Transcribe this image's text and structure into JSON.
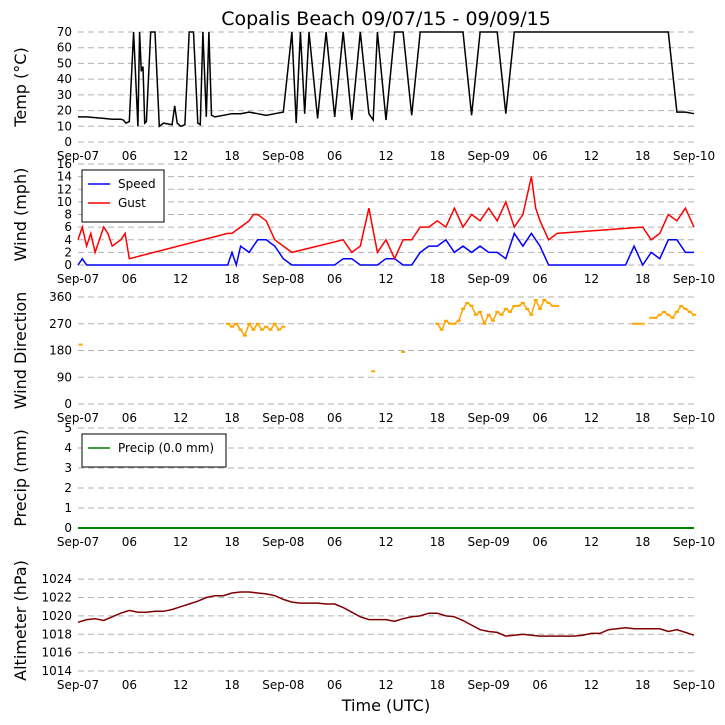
{
  "title": "Copalis Beach 09/07/15 - 09/09/15",
  "xlabel": "Time (UTC)",
  "x_ticks": [
    "Sep-07",
    "06",
    "12",
    "18",
    "Sep-08",
    "06",
    "12",
    "18",
    "Sep-09",
    "06",
    "12",
    "18",
    "Sep-10"
  ],
  "x_range_hours": [
    0,
    72
  ],
  "colors": {
    "temp": "#000000",
    "speed": "#0000ff",
    "gust": "#ff0000",
    "direction": "#ffa500",
    "precip": "#008000",
    "altimeter": "#800000",
    "grid": "#b0b0b0"
  },
  "chart_data": [
    {
      "type": "line",
      "id": "temp",
      "ylabel": "Temp (°C)",
      "ylim": [
        0,
        70
      ],
      "y_ticks": [
        "0",
        "10",
        "20",
        "30",
        "40",
        "50",
        "60",
        "70"
      ],
      "series": [
        {
          "name": "Temperature",
          "x": [
            0,
            1,
            2,
            3,
            4,
            5,
            5.3,
            5.6,
            6,
            6.5,
            7,
            7.2,
            7.4,
            7.6,
            7.8,
            8,
            8.5,
            9,
            9.5,
            10,
            11,
            11.3,
            11.6,
            12,
            12.5,
            13,
            13.5,
            14,
            14.3,
            14.6,
            15,
            15.3,
            15.6,
            16,
            17,
            18,
            19,
            20,
            21,
            22,
            23,
            24,
            25,
            25.5,
            26,
            26.5,
            27,
            28,
            29,
            30,
            31,
            32,
            33,
            34,
            34.5,
            35,
            36,
            37,
            38,
            39,
            40,
            40.5,
            41,
            42,
            43,
            44,
            45,
            46,
            47,
            48,
            49,
            50,
            51,
            52,
            53,
            54,
            55,
            56,
            57,
            58,
            59,
            60,
            61,
            62,
            63,
            64,
            65,
            66,
            67,
            68,
            69,
            70,
            71,
            72
          ],
          "y": [
            16,
            16,
            15.5,
            15,
            14.5,
            14.5,
            14,
            12,
            13,
            70,
            10,
            70,
            45,
            48,
            12,
            13,
            70,
            70,
            10,
            12,
            11,
            23,
            12,
            10,
            11,
            70,
            70,
            12,
            11,
            70,
            16,
            70,
            17,
            16,
            17,
            18,
            18,
            19,
            18,
            17,
            18,
            19,
            70,
            12,
            70,
            18,
            70,
            15,
            70,
            16,
            70,
            14,
            70,
            18,
            14,
            70,
            14,
            70,
            70,
            17,
            70,
            70,
            70,
            70,
            70,
            70,
            70,
            17,
            70,
            70,
            70,
            18,
            70,
            70,
            70,
            70,
            70,
            70,
            70,
            70,
            70,
            70,
            70,
            70,
            70,
            70,
            70,
            70,
            70,
            70,
            70,
            19,
            19,
            18
          ]
        }
      ]
    },
    {
      "type": "line",
      "id": "wind",
      "ylabel": "Wind (mph)",
      "ylim": [
        0,
        16
      ],
      "y_ticks": [
        "0",
        "2",
        "4",
        "6",
        "8",
        "10",
        "12",
        "14",
        "16"
      ],
      "legend": "top-left",
      "series": [
        {
          "name": "Speed",
          "x": [
            0,
            0.5,
            1,
            2,
            3,
            4,
            5,
            6,
            7,
            8,
            9,
            10,
            11,
            12,
            13,
            14,
            15,
            16,
            17,
            17.5,
            18,
            18.5,
            19,
            20,
            21,
            22,
            23,
            24,
            25,
            26,
            27,
            28,
            29,
            30,
            31,
            32,
            33,
            34,
            35,
            36,
            37,
            38,
            39,
            40,
            41,
            42,
            43,
            44,
            45,
            46,
            47,
            48,
            49,
            50,
            51,
            52,
            53,
            54,
            55,
            56,
            57,
            58,
            59,
            60,
            61,
            62,
            63,
            64,
            65,
            66,
            67,
            68,
            69,
            70,
            71,
            72
          ],
          "y": [
            0,
            1,
            0,
            0,
            0,
            0,
            0,
            0,
            0,
            0,
            0,
            0,
            0,
            0,
            0,
            0,
            0,
            0,
            0,
            0,
            2,
            0,
            3,
            2,
            4,
            4,
            3,
            1,
            0,
            0,
            0,
            0,
            0,
            0,
            1,
            1,
            0,
            0,
            0,
            1,
            1,
            0,
            0,
            2,
            3,
            3,
            4,
            2,
            3,
            2,
            3,
            2,
            2,
            1,
            5,
            3,
            5,
            3,
            0,
            0,
            0,
            0,
            0,
            0,
            0,
            0,
            0,
            0,
            3,
            0,
            2,
            1,
            4,
            4,
            2,
            2
          ]
        },
        {
          "name": "Gust",
          "x": [
            0,
            0.5,
            1,
            1.5,
            2,
            2.5,
            3,
            3.5,
            4,
            5,
            5.5,
            6,
            17.5,
            18,
            19,
            20,
            20.5,
            21,
            22,
            23,
            24,
            25,
            31,
            32,
            33,
            34,
            35,
            36,
            37,
            38,
            39,
            40,
            41,
            42,
            43,
            44,
            45,
            46,
            47,
            48,
            49,
            50,
            51,
            52,
            53,
            53.5,
            54,
            55,
            56,
            66,
            67,
            68,
            69,
            70,
            71,
            72
          ],
          "y": [
            4,
            6,
            3,
            5,
            2,
            4,
            6,
            5,
            3,
            4,
            5,
            1,
            5,
            5,
            6,
            7,
            8,
            8,
            7,
            4,
            3,
            2,
            4,
            2,
            3,
            9,
            2,
            4,
            1,
            4,
            4,
            6,
            6,
            7,
            6,
            9,
            6,
            8,
            7,
            9,
            7,
            10,
            6,
            8,
            14,
            9,
            7,
            4,
            5,
            6,
            4,
            5,
            8,
            7,
            9,
            6
          ]
        }
      ]
    },
    {
      "type": "scatter",
      "id": "direction",
      "ylabel": "Wind Direction",
      "ylim": [
        0,
        360
      ],
      "y_ticks": [
        "0",
        "90",
        "180",
        "270",
        "360"
      ],
      "series": [
        {
          "name": "Direction",
          "x": [
            0.3,
            17.5,
            18,
            18.5,
            19,
            19.5,
            20,
            20.5,
            21,
            21.5,
            22,
            22.5,
            23,
            23.5,
            24,
            34.5,
            38,
            42,
            42.5,
            43,
            43.5,
            44,
            44.5,
            45,
            45.5,
            46,
            46.5,
            47,
            47.5,
            48,
            48.5,
            49,
            49.5,
            50,
            50.5,
            51,
            51.5,
            52,
            52.5,
            53,
            53.5,
            54,
            54.5,
            55,
            55.5,
            56,
            65,
            65.5,
            66,
            67,
            67.5,
            68,
            68.5,
            69,
            69.5,
            70,
            70.5,
            71,
            71.5,
            72
          ],
          "y": [
            200,
            270,
            260,
            270,
            250,
            230,
            270,
            250,
            270,
            250,
            260,
            250,
            270,
            250,
            260,
            110,
            175,
            270,
            250,
            280,
            270,
            270,
            280,
            320,
            340,
            330,
            300,
            310,
            270,
            300,
            280,
            310,
            300,
            320,
            310,
            330,
            330,
            340,
            320,
            300,
            350,
            320,
            350,
            340,
            330,
            330,
            270,
            270,
            270,
            290,
            290,
            300,
            310,
            300,
            290,
            310,
            330,
            320,
            310,
            300
          ]
        }
      ]
    },
    {
      "type": "line",
      "id": "precip",
      "ylabel": "Precip (mm)",
      "ylim": [
        0,
        5
      ],
      "y_ticks": [
        "0",
        "1",
        "2",
        "3",
        "4",
        "5"
      ],
      "legend": "top-left",
      "series": [
        {
          "name": "Precip (0.0 mm)",
          "x": [
            0,
            72
          ],
          "y": [
            0,
            0
          ]
        }
      ]
    },
    {
      "type": "line",
      "id": "altimeter",
      "ylabel": "Altimeter (hPa)",
      "ylim": [
        1014,
        1025
      ],
      "y_ticks": [
        "1014",
        "1016",
        "1018",
        "1020",
        "1022",
        "1024"
      ],
      "series": [
        {
          "name": "Altimeter",
          "x": [
            0,
            1,
            2,
            3,
            4,
            5,
            6,
            7,
            8,
            9,
            10,
            11,
            12,
            13,
            14,
            15,
            16,
            17,
            18,
            19,
            20,
            21,
            22,
            23,
            24,
            25,
            26,
            27,
            28,
            29,
            30,
            31,
            32,
            33,
            34,
            35,
            36,
            37,
            38,
            39,
            40,
            41,
            42,
            43,
            44,
            45,
            46,
            47,
            48,
            49,
            50,
            51,
            52,
            53,
            54,
            55,
            56,
            57,
            58,
            59,
            60,
            61,
            62,
            63,
            64,
            65,
            66,
            67,
            68,
            69,
            70,
            71,
            72
          ],
          "y": [
            1019.3,
            1019.6,
            1019.7,
            1019.5,
            1019.9,
            1020.3,
            1020.6,
            1020.4,
            1020.4,
            1020.5,
            1020.5,
            1020.7,
            1021,
            1021.3,
            1021.6,
            1022,
            1022.2,
            1022.2,
            1022.5,
            1022.6,
            1022.6,
            1022.5,
            1022.4,
            1022.2,
            1021.8,
            1021.5,
            1021.4,
            1021.4,
            1021.4,
            1021.3,
            1021.3,
            1020.9,
            1020.4,
            1019.9,
            1019.6,
            1019.6,
            1019.6,
            1019.4,
            1019.7,
            1019.9,
            1020,
            1020.3,
            1020.3,
            1020,
            1019.9,
            1019.5,
            1019,
            1018.5,
            1018.3,
            1018.2,
            1017.8,
            1017.9,
            1018,
            1017.9,
            1017.8,
            1017.8,
            1017.8,
            1017.8,
            1017.8,
            1017.9,
            1018.1,
            1018.1,
            1018.5,
            1018.6,
            1018.7,
            1018.6,
            1018.6,
            1018.6,
            1018.6,
            1018.3,
            1018.5,
            1018.2,
            1017.9
          ]
        }
      ]
    }
  ]
}
